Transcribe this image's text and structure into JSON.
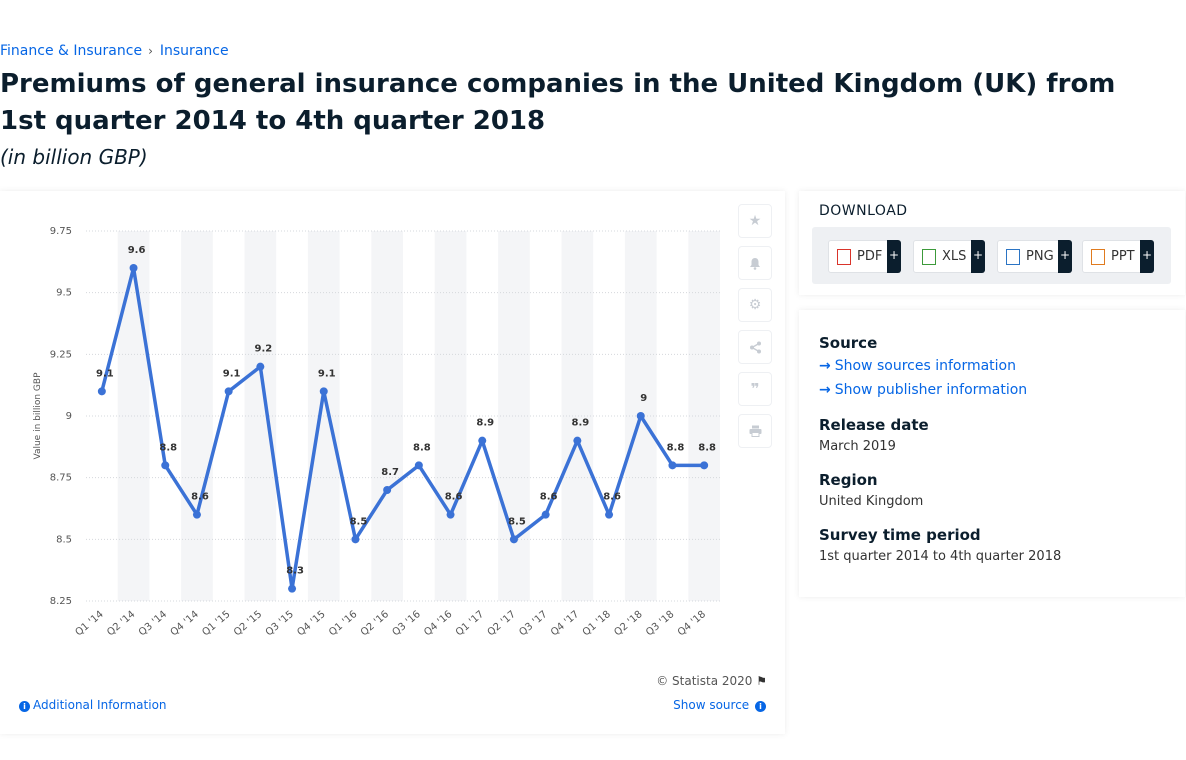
{
  "breadcrumb": {
    "item1": "Finance & Insurance",
    "sep": "›",
    "item2": "Insurance"
  },
  "title": "Premiums of general insurance companies in the United Kingdom (UK) from 1st quarter 2014 to 4th quarter 2018",
  "subtitle": "(in billion GBP)",
  "chart_data": {
    "type": "line",
    "categories": [
      "Q1 '14",
      "Q2 '14",
      "Q3 '14",
      "Q4 '14",
      "Q1 '15",
      "Q2 '15",
      "Q3 '15",
      "Q4 '15",
      "Q1 '16",
      "Q2 '16",
      "Q3 '16",
      "Q4 '16",
      "Q1 '17",
      "Q2 '17",
      "Q3 '17",
      "Q4 '17",
      "Q1 '18",
      "Q2 '18",
      "Q3 '18",
      "Q4 '18"
    ],
    "values": [
      9.1,
      9.6,
      8.8,
      8.6,
      9.1,
      9.2,
      8.3,
      9.1,
      8.5,
      8.7,
      8.8,
      8.6,
      8.9,
      8.5,
      8.6,
      8.9,
      8.6,
      9,
      8.8,
      8.8
    ],
    "ylabel": "Value in billion GBP",
    "ylim": [
      8.25,
      9.75
    ],
    "yticks": [
      "8.25",
      "8.5",
      "8.75",
      "9",
      "9.25",
      "9.5",
      "9.75"
    ],
    "line_color": "#3b72d6",
    "grid": true
  },
  "tools": {
    "star": "star-icon",
    "bell": "bell-icon",
    "gear": "gear-icon",
    "share": "share-icon",
    "quote": "quote-icon",
    "print": "print-icon"
  },
  "footer": {
    "copyright": "© Statista 2020",
    "additional": "Additional Information",
    "show_source": "Show source"
  },
  "download": {
    "title": "DOWNLOAD",
    "buttons": [
      {
        "label": "PDF",
        "plus": "+",
        "color": "#d9342b"
      },
      {
        "label": "XLS",
        "plus": "+",
        "color": "#3c9a3a"
      },
      {
        "label": "PNG",
        "plus": "+",
        "color": "#2b74c4"
      },
      {
        "label": "PPT",
        "plus": "+",
        "color": "#e07b1f"
      }
    ]
  },
  "info": {
    "source_label": "Source",
    "show_sources": "Show sources information",
    "show_publisher": "Show publisher information",
    "release_label": "Release date",
    "release_value": "March 2019",
    "region_label": "Region",
    "region_value": "United Kingdom",
    "survey_label": "Survey time period",
    "survey_value": "1st quarter 2014 to 4th quarter 2018"
  }
}
